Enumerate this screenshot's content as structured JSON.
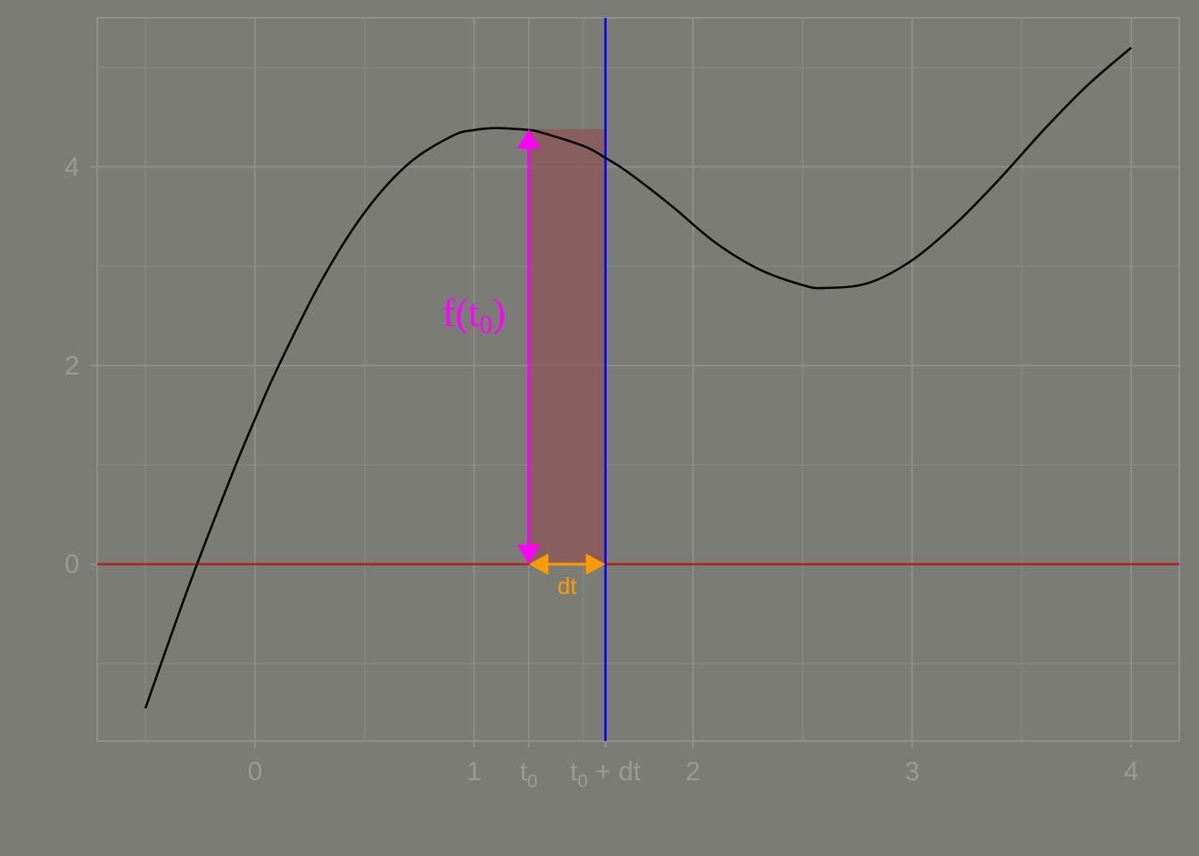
{
  "chart_data": {
    "type": "line",
    "title": "",
    "xlabel": "",
    "ylabel": "",
    "xlim": [
      -0.72,
      4.22
    ],
    "ylim": [
      -1.78,
      5.5
    ],
    "x_major_ticks": [
      {
        "value": 0,
        "label": "0"
      },
      {
        "value": 1,
        "label": "1"
      },
      {
        "value": 2,
        "label": "2"
      },
      {
        "value": 3,
        "label": "3"
      },
      {
        "value": 4,
        "label": "4"
      }
    ],
    "x_special_ticks": [
      {
        "value": 1.25,
        "label": "t",
        "sub": "0",
        "suffix": ""
      },
      {
        "value": 1.6,
        "label": "t",
        "sub": "0",
        "suffix": " + dt"
      }
    ],
    "y_major_ticks": [
      {
        "value": 0,
        "label": "0"
      },
      {
        "value": 2,
        "label": "2"
      },
      {
        "value": 4,
        "label": "4"
      }
    ],
    "grid": true,
    "series": [
      {
        "color": "#000000",
        "x": [
          -0.5,
          -0.3,
          -0.1,
          0.0,
          0.1,
          0.3,
          0.5,
          0.7,
          0.9,
          1.0,
          1.1,
          1.2,
          1.25,
          1.3,
          1.5,
          1.6,
          1.7,
          1.9,
          2.1,
          2.3,
          2.5,
          2.6,
          2.8,
          3.0,
          3.2,
          3.4,
          3.6,
          3.8,
          4.0
        ],
        "y": [
          -1.45,
          -0.21,
          0.93,
          1.46,
          1.96,
          2.84,
          3.54,
          4.03,
          4.31,
          4.37,
          4.39,
          4.38,
          4.37,
          4.35,
          4.21,
          4.09,
          3.95,
          3.61,
          3.24,
          2.97,
          2.81,
          2.78,
          2.83,
          3.06,
          3.43,
          3.88,
          4.37,
          4.82,
          5.2
        ]
      }
    ],
    "reference_lines": {
      "horizontal_y": 0,
      "horizontal_color": "#b22222",
      "vertical_x": 1.6,
      "vertical_color": "#0000ff"
    },
    "rectangle": {
      "x0": 1.25,
      "x1": 1.6,
      "y0": 0,
      "y1": 4.38,
      "color": "#8b5a5a"
    },
    "annotations": {
      "f_label": {
        "main": "f",
        "open": "(",
        "var": "t",
        "sub": "0",
        "close": ")",
        "color": "#ff00ff",
        "at_x": 1.0,
        "at_y": 2.4
      },
      "f_arrow": {
        "x": 1.25,
        "y0": 0,
        "y1": 4.38,
        "color": "#ff00ff"
      },
      "dt_label": {
        "text": "dt",
        "color": "#ff9b00",
        "at_x": 1.425,
        "at_y": -0.22
      },
      "dt_arrow": {
        "x0": 1.25,
        "x1": 1.6,
        "y": 0,
        "color": "#ff9b00"
      }
    }
  }
}
